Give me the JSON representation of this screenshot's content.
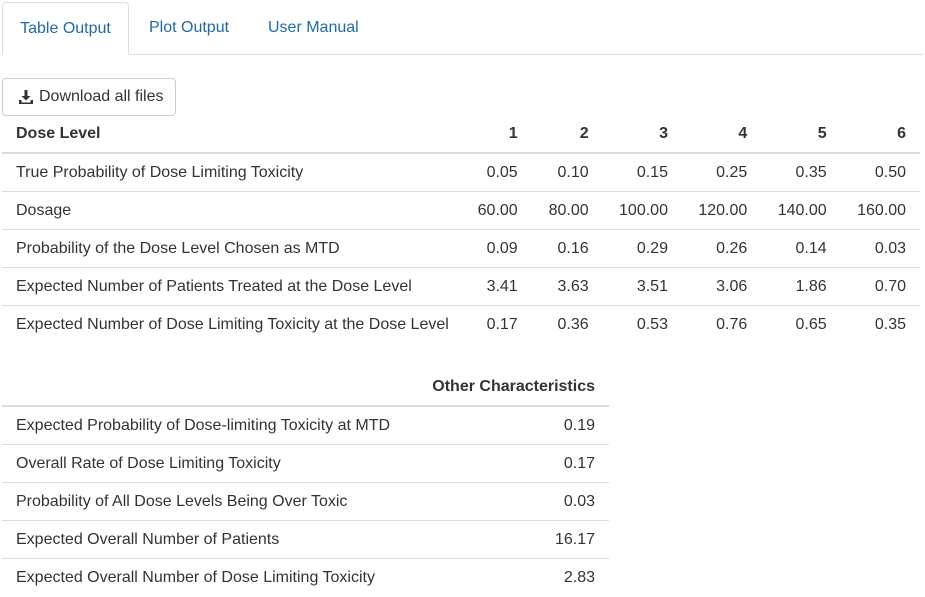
{
  "tabs": [
    {
      "label": "Table Output",
      "active": true
    },
    {
      "label": "Plot Output",
      "active": false
    },
    {
      "label": "User Manual",
      "active": false
    }
  ],
  "download_button": {
    "label": "Download all files",
    "icon": "download-icon"
  },
  "dose_table": {
    "header_label": "Dose Level",
    "columns": [
      "1",
      "2",
      "3",
      "4",
      "5",
      "6"
    ],
    "rows": [
      {
        "label": "True Probability of Dose Limiting Toxicity",
        "values": [
          "0.05",
          "0.10",
          "0.15",
          "0.25",
          "0.35",
          "0.50"
        ]
      },
      {
        "label": "Dosage",
        "values": [
          "60.00",
          "80.00",
          "100.00",
          "120.00",
          "140.00",
          "160.00"
        ]
      },
      {
        "label": "Probability of the Dose Level Chosen as MTD",
        "values": [
          "0.09",
          "0.16",
          "0.29",
          "0.26",
          "0.14",
          "0.03"
        ]
      },
      {
        "label": "Expected Number of Patients Treated at the Dose Level",
        "values": [
          "3.41",
          "3.63",
          "3.51",
          "3.06",
          "1.86",
          "0.70"
        ]
      },
      {
        "label": "Expected Number of Dose Limiting Toxicity at the Dose Level",
        "values": [
          "0.17",
          "0.36",
          "0.53",
          "0.76",
          "0.65",
          "0.35"
        ]
      }
    ]
  },
  "other_table": {
    "header_label": "",
    "header_value": "Other Characteristics",
    "rows": [
      {
        "label": "Expected Probability of Dose-limiting Toxicity at MTD",
        "value": "0.19"
      },
      {
        "label": "Overall Rate of Dose Limiting Toxicity",
        "value": "0.17"
      },
      {
        "label": "Probability of All Dose Levels Being Over Toxic",
        "value": "0.03"
      },
      {
        "label": "Expected Overall Number of Patients",
        "value": "16.17"
      },
      {
        "label": "Expected Overall Number of Dose Limiting Toxicity",
        "value": "2.83"
      }
    ]
  },
  "colors": {
    "link": "#1f6aa5",
    "text": "#333333",
    "border": "#dddddd"
  }
}
